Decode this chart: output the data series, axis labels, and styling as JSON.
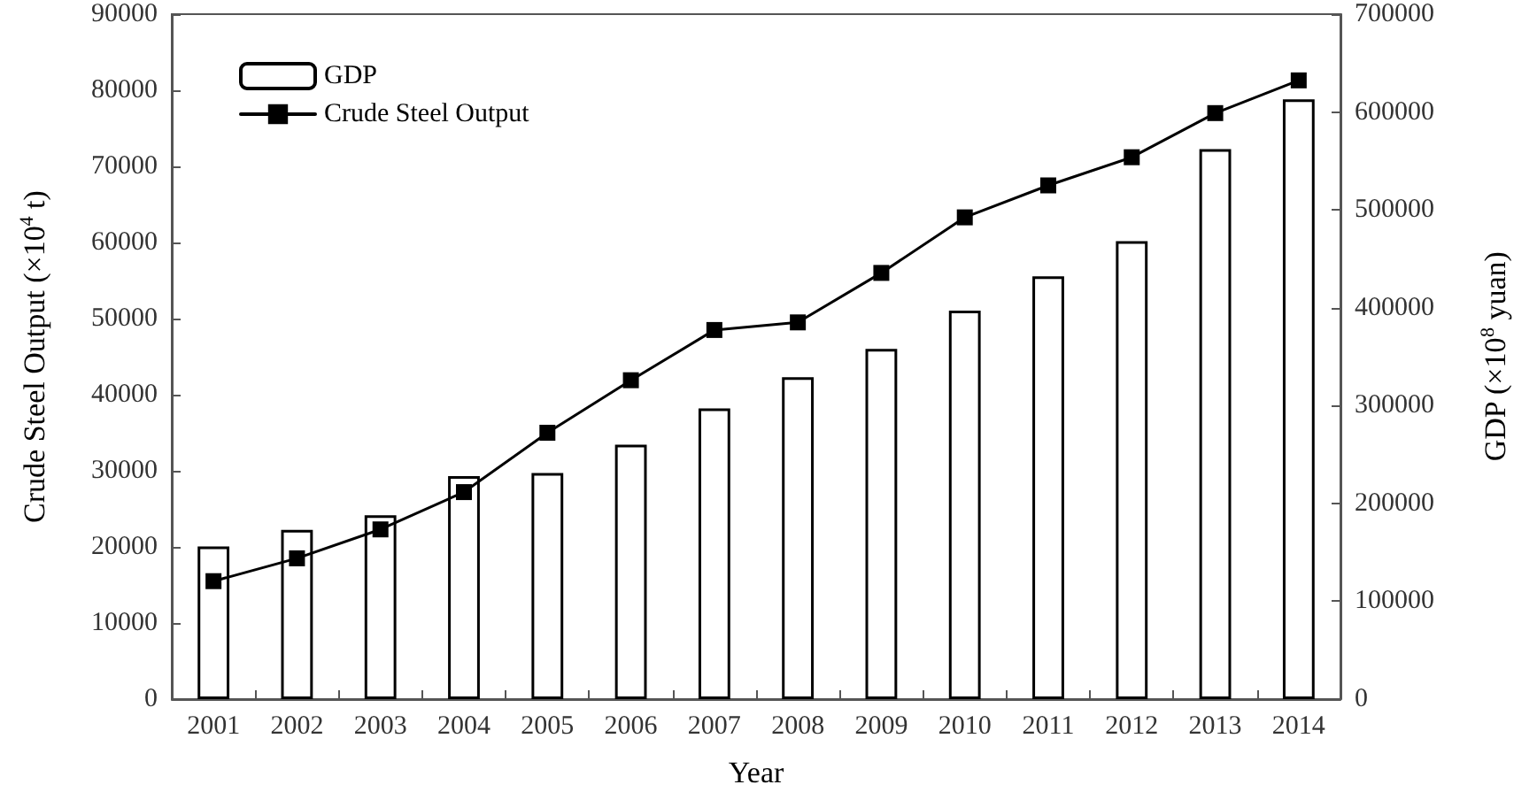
{
  "chart_data": {
    "type": "bar",
    "xlabel": "Year",
    "ylabel": "Crude Steel Output (×10$^{4}$ t)",
    "y2label": "GDP (×10$^{8}$ yuan)",
    "categories": [
      "2001",
      "2002",
      "2003",
      "2004",
      "2005",
      "2006",
      "2007",
      "2008",
      "2009",
      "2010",
      "2011",
      "2012",
      "2013",
      "2014"
    ],
    "series": [
      {
        "name": "GDP",
        "axis": "y2",
        "color": "#ffffff",
        "values": [
          156000,
          173000,
          188000,
          228000,
          231000,
          260000,
          297000,
          329000,
          358000,
          397000,
          432000,
          468000,
          562000,
          613000
        ]
      },
      {
        "name": "Crude Steel Output",
        "type": "line",
        "color": "#000000",
        "values": [
          15500,
          18500,
          22300,
          27200,
          35000,
          41900,
          48500,
          49500,
          56000,
          63300,
          67500,
          71200,
          77000,
          81300
        ]
      }
    ],
    "ylim": [
      0,
      90000
    ],
    "yticks": [
      0,
      10000,
      20000,
      30000,
      40000,
      50000,
      60000,
      70000,
      80000,
      90000
    ],
    "y2lim": [
      0,
      700000
    ],
    "y2ticks": [
      0,
      100000,
      200000,
      300000,
      400000,
      500000,
      600000,
      700000
    ],
    "legend": "top left",
    "grid": false,
    "marker": "square",
    "line_style": "solid"
  }
}
